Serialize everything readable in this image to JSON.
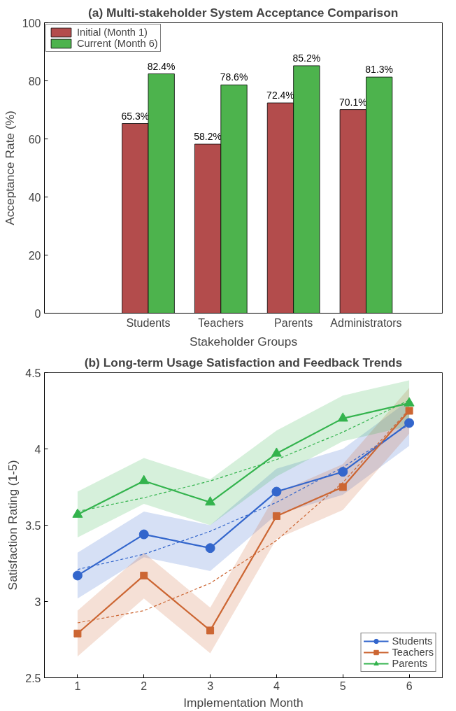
{
  "chart_data": [
    {
      "type": "bar",
      "title": "(a) Multi-stakeholder System Acceptance Comparison",
      "xlabel": "Stakeholder Groups",
      "ylabel": "Acceptance Rate (%)",
      "categories": [
        "Students",
        "Teachers",
        "Parents",
        "Administrators"
      ],
      "series": [
        {
          "name": "Initial (Month 1)",
          "color": "#b34c4c",
          "values": [
            65.3,
            58.2,
            72.4,
            70.1
          ],
          "value_labels": [
            "65.3%",
            "58.2%",
            "72.4%",
            "70.1%"
          ]
        },
        {
          "name": "Current (Month 6)",
          "color": "#4db34d",
          "values": [
            82.4,
            78.6,
            85.2,
            81.3
          ],
          "value_labels": [
            "82.4%",
            "78.6%",
            "85.2%",
            "81.3%"
          ]
        }
      ],
      "ylim": [
        0,
        100
      ],
      "yticks": [
        0,
        20,
        40,
        60,
        80,
        100
      ],
      "grid": false,
      "legend": "top left"
    },
    {
      "type": "line",
      "title": "(b) Long-term Usage Satisfaction and Feedback Trends",
      "xlabel": "Implementation Month",
      "ylabel": "Satisfaction Rating (1-5)",
      "x": [
        1,
        2,
        3,
        4,
        5,
        6
      ],
      "series": [
        {
          "name": "Students",
          "color": "#3366cc",
          "marker": "circle",
          "line_style": "solid",
          "values": [
            3.17,
            3.44,
            3.35,
            3.72,
            3.85,
            4.17
          ],
          "lower": [
            3.02,
            3.29,
            3.2,
            3.57,
            3.7,
            4.02
          ],
          "upper": [
            3.32,
            3.59,
            3.5,
            3.87,
            4.0,
            4.32
          ]
        },
        {
          "name": "Teachers",
          "color": "#cc6633",
          "marker": "square",
          "line_style": "solid",
          "values": [
            2.79,
            3.17,
            2.81,
            3.56,
            3.75,
            4.25
          ],
          "lower": [
            2.64,
            3.02,
            2.66,
            3.41,
            3.6,
            4.1
          ],
          "upper": [
            2.94,
            3.32,
            2.96,
            3.71,
            3.9,
            4.4
          ]
        },
        {
          "name": "Parents",
          "color": "#33b34d",
          "marker": "triangle",
          "line_style": "solid",
          "values": [
            3.57,
            3.79,
            3.65,
            3.97,
            4.2,
            4.3
          ],
          "lower": [
            3.42,
            3.64,
            3.5,
            3.82,
            4.05,
            4.15
          ],
          "upper": [
            3.72,
            3.94,
            3.8,
            4.12,
            4.35,
            4.45
          ]
        },
        {
          "type": "line",
          "color": "#3366cc",
          "marker": "none",
          "line_style": "dashed",
          "values": [
            3.21,
            3.31,
            3.46,
            3.65,
            3.88,
            4.16
          ]
        },
        {
          "type": "line",
          "color": "#cc6633",
          "marker": "none",
          "line_style": "dashed",
          "values": [
            2.86,
            2.94,
            3.12,
            3.4,
            3.78,
            4.26
          ]
        },
        {
          "type": "line",
          "color": "#33b34d",
          "marker": "none",
          "line_style": "dashed",
          "values": [
            3.59,
            3.68,
            3.79,
            3.93,
            4.11,
            4.32
          ]
        }
      ],
      "xlim": [
        0.5,
        6.5
      ],
      "xticks": [
        1,
        2,
        3,
        4,
        5,
        6
      ],
      "ylim": [
        2.5,
        4.5
      ],
      "yticks": [
        2.5,
        3,
        3.5,
        4,
        4.5
      ],
      "grid": false,
      "legend": "bottom right"
    }
  ]
}
